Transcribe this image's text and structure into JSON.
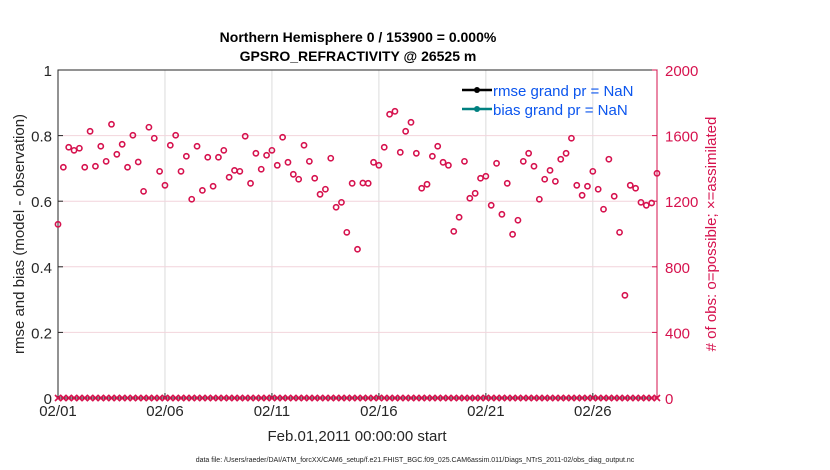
{
  "chart_data": {
    "type": "scatter",
    "title": [
      "Northern Hemisphere 0 / 153900 = 0.000%",
      "GPSRO_REFRACTIVITY @ 26525 m"
    ],
    "xlabel": "Feb.01,2011 00:00:00 start",
    "ylabel_left": "rmse and bias (model - observation)",
    "ylabel_right": "# of obs: o=possible; ×=assimilated",
    "ylim_left": [
      0,
      1
    ],
    "ylim_right": [
      0,
      2000
    ],
    "yticks_left": [
      "0",
      "0.2",
      "0.4",
      "0.6",
      "0.8",
      "1"
    ],
    "yticks_right": [
      "0",
      "400",
      "800",
      "1200",
      "1600",
      "2000"
    ],
    "xticks": [
      "02/01",
      "02/06",
      "02/11",
      "02/16",
      "02/21",
      "02/26"
    ],
    "x_range_days": [
      0,
      28
    ],
    "x_step_days": 0.25,
    "grid": true,
    "legend": {
      "placement": "top-right",
      "entries": [
        {
          "label": "rmse grand pr = NaN",
          "color": "#000000"
        },
        {
          "label": "bias grand pr = NaN",
          "color": "#008080"
        }
      ]
    },
    "series": [
      {
        "name": "obs possible",
        "marker": "o",
        "axis": "right",
        "color": "#d6124e",
        "values": [
          1059,
          1407,
          1529,
          1510,
          1523,
          1407,
          1626,
          1413,
          1535,
          1443,
          1669,
          1486,
          1547,
          1407,
          1602,
          1439,
          1260,
          1651,
          1584,
          1382,
          1297,
          1541,
          1602,
          1382,
          1474,
          1212,
          1535,
          1266,
          1468,
          1291,
          1468,
          1510,
          1346,
          1388,
          1382,
          1596,
          1309,
          1492,
          1395,
          1480,
          1510,
          1419,
          1590,
          1437,
          1364,
          1334,
          1541,
          1443,
          1340,
          1242,
          1273,
          1462,
          1163,
          1193,
          1010,
          1309,
          907,
          1311,
          1309,
          1437,
          1419,
          1529,
          1730,
          1748,
          1498,
          1626,
          1681,
          1492,
          1279,
          1303,
          1474,
          1535,
          1437,
          1419,
          1016,
          1102,
          1443,
          1218,
          1248,
          1340,
          1352,
          1175,
          1431,
          1120,
          1309,
          998,
          1084,
          1443,
          1492,
          1413,
          1212,
          1334,
          1388,
          1321,
          1456,
          1492,
          1584,
          1297,
          1236,
          1291,
          1382,
          1273,
          1151,
          1456,
          1230,
          1010,
          626,
          1297,
          1279,
          1193,
          1175,
          1189,
          1370
        ]
      },
      {
        "name": "obs assimilated",
        "marker": "x",
        "axis": "right",
        "color": "#d6124e",
        "constant_value": 0
      }
    ],
    "footer": "data file: /Users/raeder/DAI/ATM_forcXX/CAM6_setup/f.e21.FHIST_BGC.f09_025.CAM6assim.011/Diags_NTrS_2011-02/obs_diag_output.nc"
  }
}
